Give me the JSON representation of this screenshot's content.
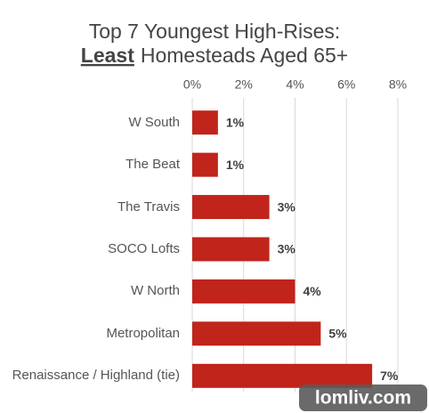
{
  "chart_data": {
    "type": "bar",
    "orientation": "horizontal",
    "title": "Top 7 Youngest High-Rises:",
    "subtitle_emphasis": "Least",
    "subtitle": "Homesteads Aged 65+",
    "categories": [
      "W South",
      "The Beat",
      "The Travis",
      "SOCO Lofts",
      "W North",
      "Metropolitan",
      "Renaissance / Highland (tie)"
    ],
    "values": [
      1,
      1,
      3,
      3,
      4,
      5,
      7
    ],
    "value_labels": [
      "1%",
      "1%",
      "3%",
      "3%",
      "4%",
      "5%",
      "7%"
    ],
    "color": "#c0241b",
    "xlim": [
      0,
      8
    ],
    "xticks": [
      {
        "value": 0,
        "label": "0%"
      },
      {
        "value": 2,
        "label": "2%"
      },
      {
        "value": 4,
        "label": "4%"
      },
      {
        "value": 6,
        "label": "6%"
      },
      {
        "value": 8,
        "label": "8%"
      }
    ],
    "grid": true
  },
  "watermark": "lomliv.com"
}
